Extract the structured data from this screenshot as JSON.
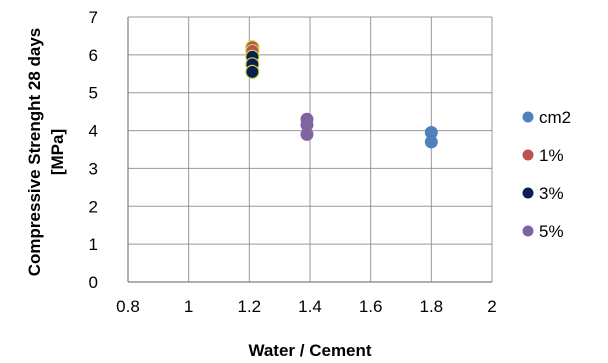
{
  "chart_data": {
    "type": "scatter",
    "title": "",
    "xlabel": "Water / Cement",
    "ylabel": "Compressive Strenght 28 days [MPa]",
    "xlim": [
      0.8,
      2
    ],
    "ylim": [
      0,
      7
    ],
    "xticks": [
      0.8,
      1,
      1.2,
      1.4,
      1.6,
      1.8,
      2
    ],
    "xtick_labels": [
      "0.8",
      "1",
      "1.2",
      "1.4",
      "1.6",
      "1.8",
      "2"
    ],
    "yticks": [
      0,
      1,
      2,
      3,
      4,
      5,
      6,
      7
    ],
    "ytick_labels": [
      "0",
      "1",
      "2",
      "3",
      "4",
      "5",
      "6",
      "7"
    ],
    "grid": true,
    "legend_position": "right",
    "series": [
      {
        "name": "cm2",
        "color": "#4f81bd",
        "points": [
          {
            "x": 1.8,
            "y": 3.95
          },
          {
            "x": 1.8,
            "y": 3.7
          }
        ]
      },
      {
        "name": "1%",
        "color": "#c0504d",
        "points": [
          {
            "x": 1.21,
            "y": 6.2
          },
          {
            "x": 1.21,
            "y": 6.1
          }
        ]
      },
      {
        "name": "3%",
        "color": "#0b1f4f",
        "points": [
          {
            "x": 1.21,
            "y": 5.95
          },
          {
            "x": 1.21,
            "y": 5.75
          },
          {
            "x": 1.21,
            "y": 5.55
          }
        ]
      },
      {
        "name": "5%",
        "color": "#8064a2",
        "points": [
          {
            "x": 1.39,
            "y": 4.3
          },
          {
            "x": 1.39,
            "y": 4.15
          },
          {
            "x": 1.39,
            "y": 3.9
          }
        ]
      }
    ],
    "marker_outline_color": "#c8d44a"
  }
}
